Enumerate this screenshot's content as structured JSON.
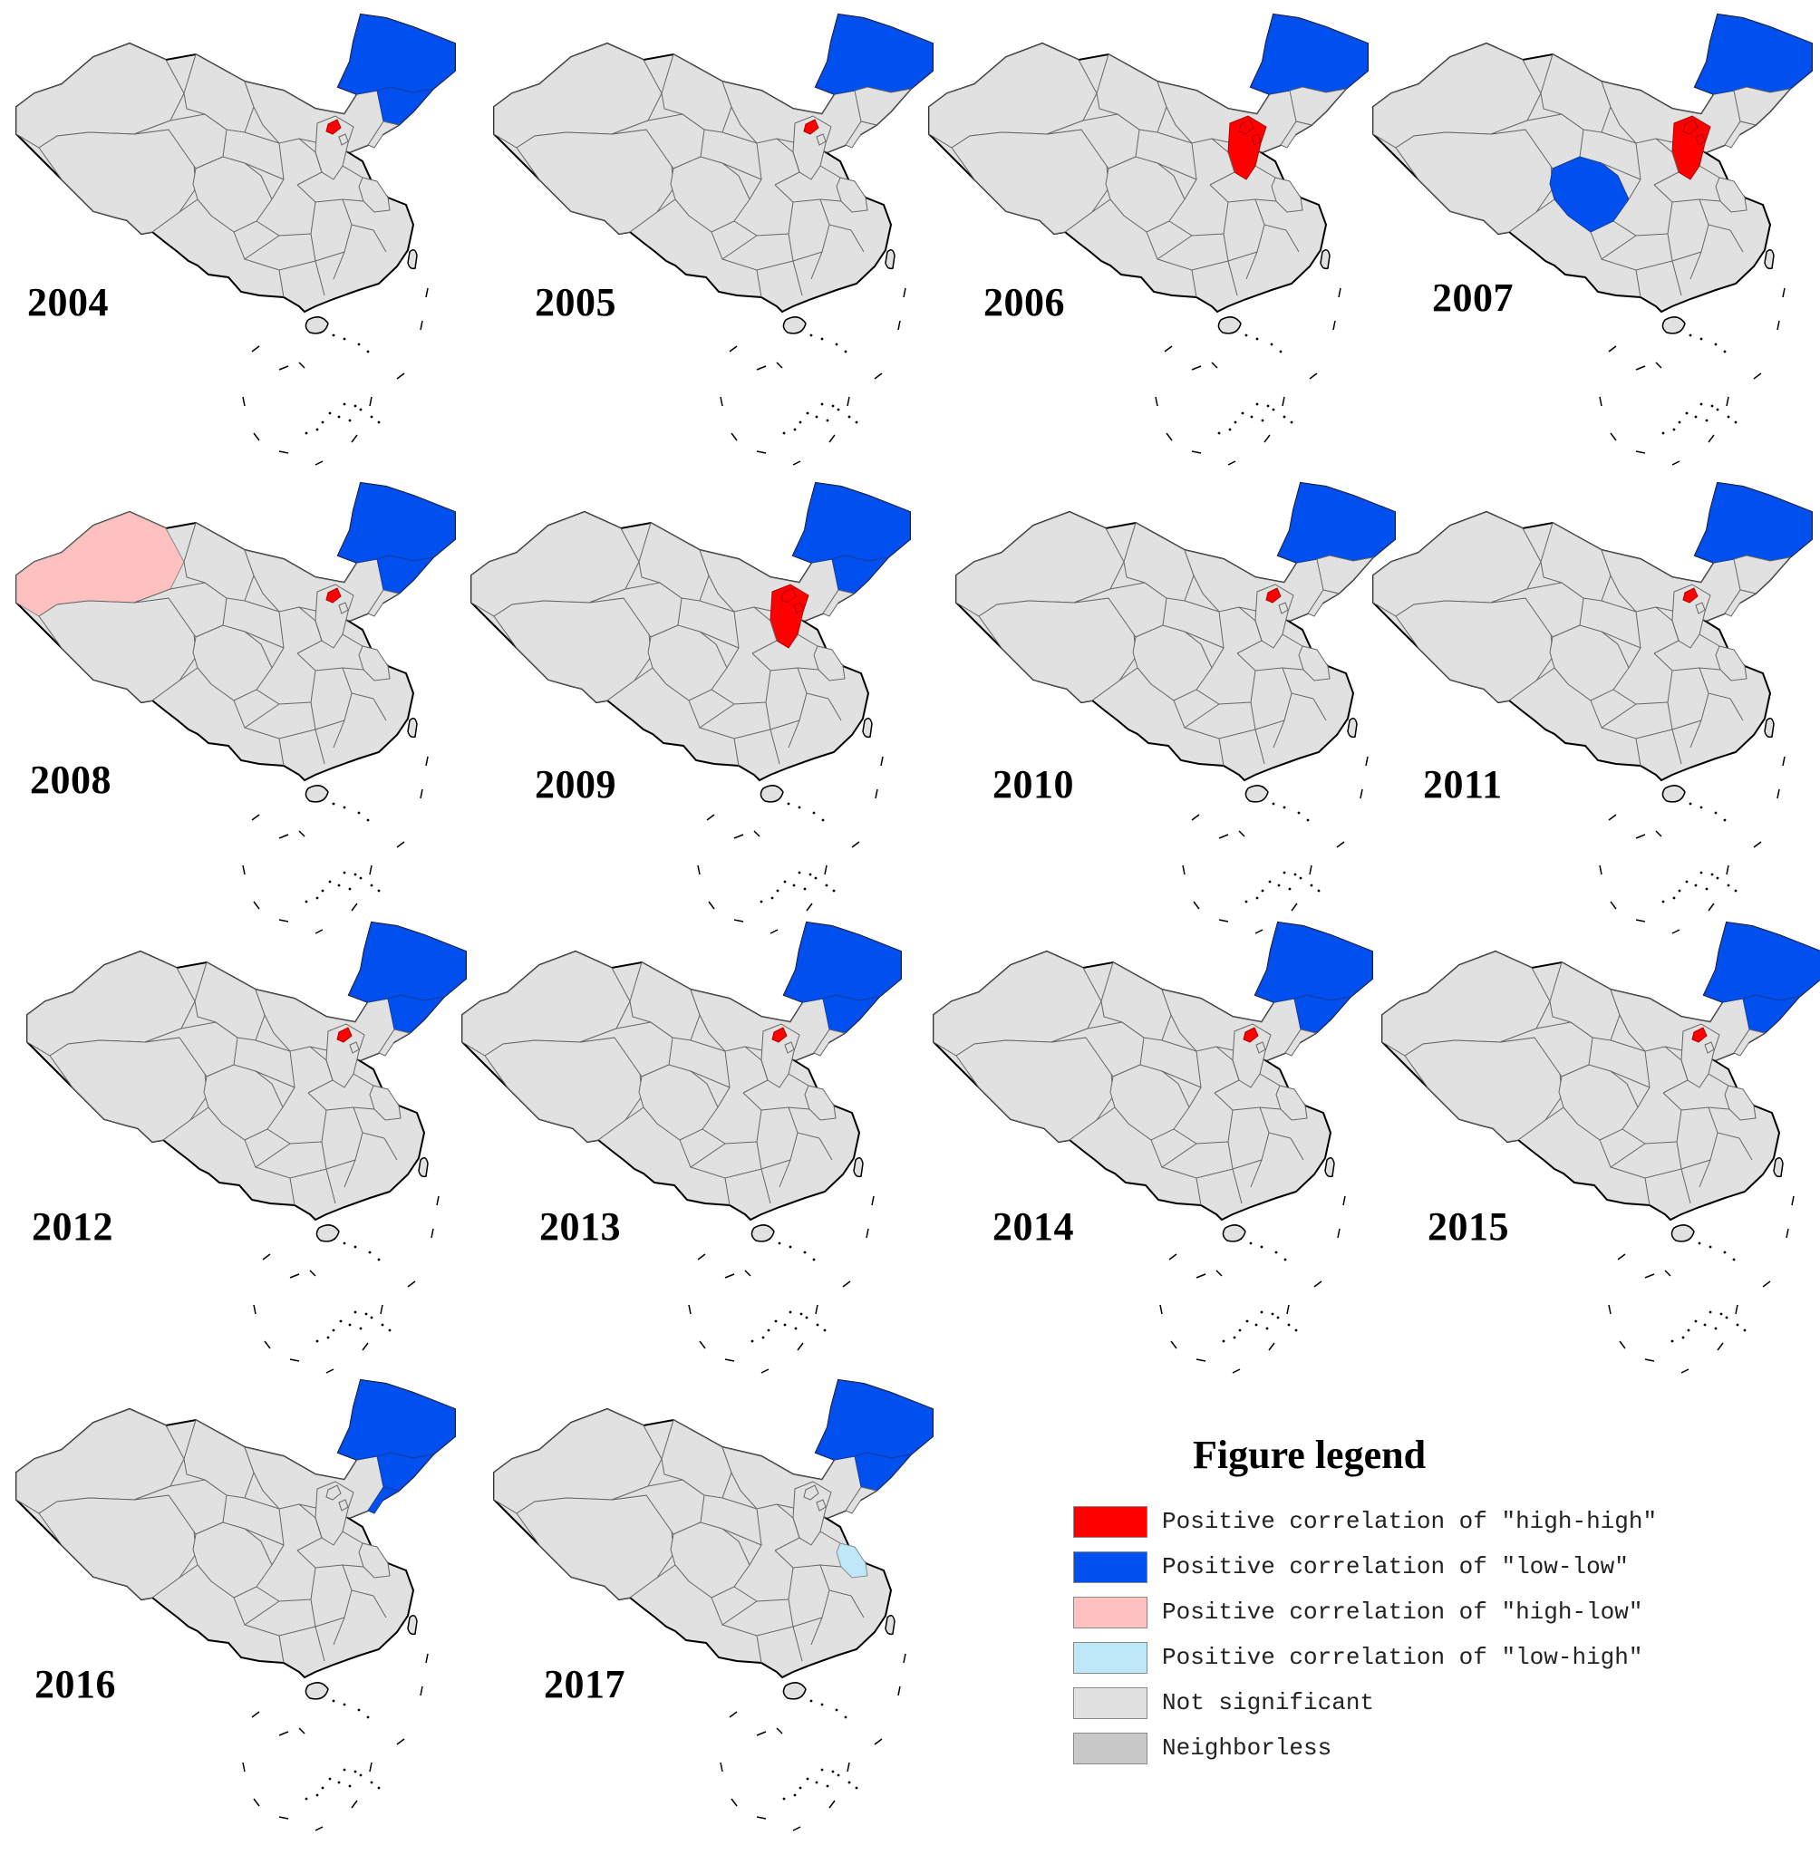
{
  "figure": {
    "panels": [
      {
        "year": "2004",
        "classes": {
          "heilongjiang": "low-low",
          "jilin": "low-low",
          "beijing": "high-high"
        }
      },
      {
        "year": "2005",
        "classes": {
          "heilongjiang": "low-low",
          "beijing": "high-high"
        }
      },
      {
        "year": "2006",
        "classes": {
          "heilongjiang": "low-low",
          "beijing": "high-high",
          "tianjin": "high-high",
          "hebei": "high-high"
        }
      },
      {
        "year": "2007",
        "classes": {
          "heilongjiang": "low-low",
          "beijing": "high-high",
          "tianjin": "high-high",
          "hebei": "high-high",
          "sichuan": "low-low"
        }
      },
      {
        "year": "2008",
        "classes": {
          "heilongjiang": "low-low",
          "jilin": "low-low",
          "beijing": "high-high",
          "xinjiang": "high-low"
        }
      },
      {
        "year": "2009",
        "classes": {
          "heilongjiang": "low-low",
          "jilin": "low-low",
          "beijing": "high-high",
          "tianjin": "high-high",
          "hebei": "high-high"
        }
      },
      {
        "year": "2010",
        "classes": {
          "heilongjiang": "low-low",
          "beijing": "high-high"
        }
      },
      {
        "year": "2011",
        "classes": {
          "heilongjiang": "low-low",
          "beijing": "high-high"
        }
      },
      {
        "year": "2012",
        "classes": {
          "heilongjiang": "low-low",
          "jilin": "low-low",
          "beijing": "high-high"
        }
      },
      {
        "year": "2013",
        "classes": {
          "heilongjiang": "low-low",
          "jilin": "low-low",
          "beijing": "high-high"
        }
      },
      {
        "year": "2014",
        "classes": {
          "heilongjiang": "low-low",
          "jilin": "low-low",
          "beijing": "high-high"
        }
      },
      {
        "year": "2015",
        "classes": {
          "heilongjiang": "low-low",
          "jilin": "low-low",
          "beijing": "high-high"
        }
      },
      {
        "year": "2016",
        "classes": {
          "heilongjiang": "low-low",
          "jilin": "low-low",
          "liaoning": "low-low"
        }
      },
      {
        "year": "2017",
        "classes": {
          "heilongjiang": "low-low",
          "jilin": "low-low",
          "jiangsu": "low-high"
        }
      }
    ]
  },
  "legend": {
    "title": "Figure legend",
    "items": [
      {
        "key": "high-high",
        "label": "Positive correlation of ″high-high″",
        "color": "#ff0000"
      },
      {
        "key": "low-low",
        "label": "Positive correlation of ″low-low″",
        "color": "#0050f0"
      },
      {
        "key": "high-low",
        "label": "Positive correlation of ″high-low″",
        "color": "#ffc0c0"
      },
      {
        "key": "low-high",
        "label": "Positive correlation of ″low-high″",
        "color": "#bee8f8"
      },
      {
        "key": "not-significant",
        "label": "Not significant",
        "color": "#e1e1e1"
      },
      {
        "key": "neighborless",
        "label": "Neighborless",
        "color": "#c8c8c8"
      }
    ]
  }
}
